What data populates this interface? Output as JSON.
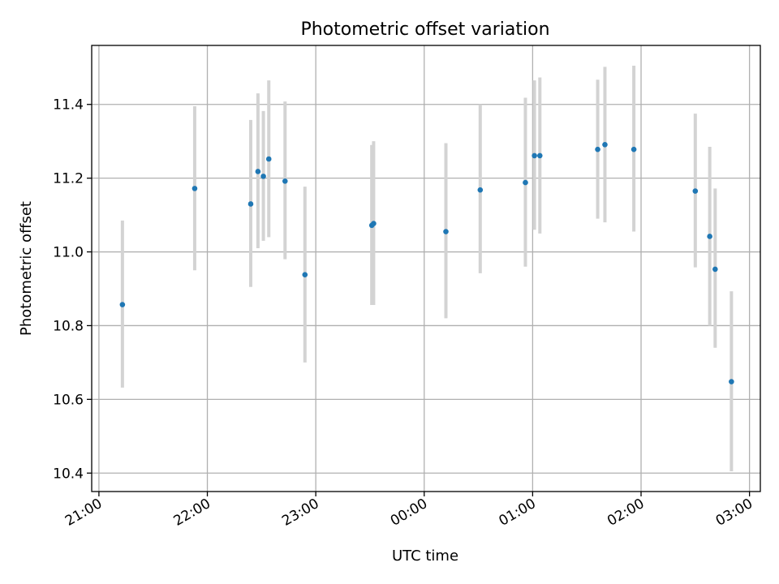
{
  "chart_data": {
    "type": "scatter",
    "title": "Photometric offset variation",
    "xlabel": "UTC time",
    "ylabel": "Photometric offset",
    "x_axis": {
      "kind": "time",
      "range": [
        "20:56",
        "03:06"
      ],
      "ticks": [
        "21:00",
        "22:00",
        "23:00",
        "00:00",
        "01:00",
        "02:00",
        "03:00"
      ]
    },
    "y_axis": {
      "range": [
        10.35,
        11.56
      ],
      "ticks": [
        10.4,
        10.6,
        10.8,
        11.0,
        11.2,
        11.4
      ],
      "tick_labels": [
        "10.4",
        "10.6",
        "10.8",
        "11.0",
        "11.2",
        "11.4"
      ]
    },
    "grid": true,
    "colors": {
      "point": "#1f77b4",
      "error_bar": "#d3d3d3"
    },
    "series": [
      {
        "points": [
          {
            "x": "21:13",
            "y": 10.857,
            "err_low": 10.632,
            "err_high": 11.085
          },
          {
            "x": "21:53",
            "y": 11.172,
            "err_low": 10.95,
            "err_high": 11.395
          },
          {
            "x": "22:24",
            "y": 11.13,
            "err_low": 10.905,
            "err_high": 11.358
          },
          {
            "x": "22:28",
            "y": 11.218,
            "err_low": 11.01,
            "err_high": 11.43
          },
          {
            "x": "22:31",
            "y": 11.205,
            "err_low": 11.03,
            "err_high": 11.382
          },
          {
            "x": "22:34",
            "y": 11.252,
            "err_low": 11.04,
            "err_high": 11.465
          },
          {
            "x": "22:43",
            "y": 11.192,
            "err_low": 10.98,
            "err_high": 11.408
          },
          {
            "x": "22:54",
            "y": 10.938,
            "err_low": 10.7,
            "err_high": 11.177
          },
          {
            "x": "23:31",
            "y": 11.072,
            "err_low": 10.856,
            "err_high": 11.29
          },
          {
            "x": "23:32",
            "y": 11.077,
            "err_low": 10.856,
            "err_high": 11.3
          },
          {
            "x": "00:12",
            "y": 11.055,
            "err_low": 10.82,
            "err_high": 11.295
          },
          {
            "x": "00:31",
            "y": 11.168,
            "err_low": 10.942,
            "err_high": 11.4
          },
          {
            "x": "00:56",
            "y": 11.188,
            "err_low": 10.96,
            "err_high": 11.418
          },
          {
            "x": "01:01",
            "y": 11.261,
            "err_low": 11.06,
            "err_high": 11.465
          },
          {
            "x": "01:04",
            "y": 11.261,
            "err_low": 11.05,
            "err_high": 11.473
          },
          {
            "x": "01:36",
            "y": 11.278,
            "err_low": 11.09,
            "err_high": 11.467
          },
          {
            "x": "01:40",
            "y": 11.291,
            "err_low": 11.08,
            "err_high": 11.502
          },
          {
            "x": "01:56",
            "y": 11.278,
            "err_low": 11.055,
            "err_high": 11.505
          },
          {
            "x": "02:30",
            "y": 11.165,
            "err_low": 10.958,
            "err_high": 11.375
          },
          {
            "x": "02:38",
            "y": 11.042,
            "err_low": 10.8,
            "err_high": 11.285
          },
          {
            "x": "02:41",
            "y": 10.953,
            "err_low": 10.74,
            "err_high": 11.172
          },
          {
            "x": "02:50",
            "y": 10.648,
            "err_low": 10.405,
            "err_high": 10.893
          }
        ]
      }
    ]
  }
}
